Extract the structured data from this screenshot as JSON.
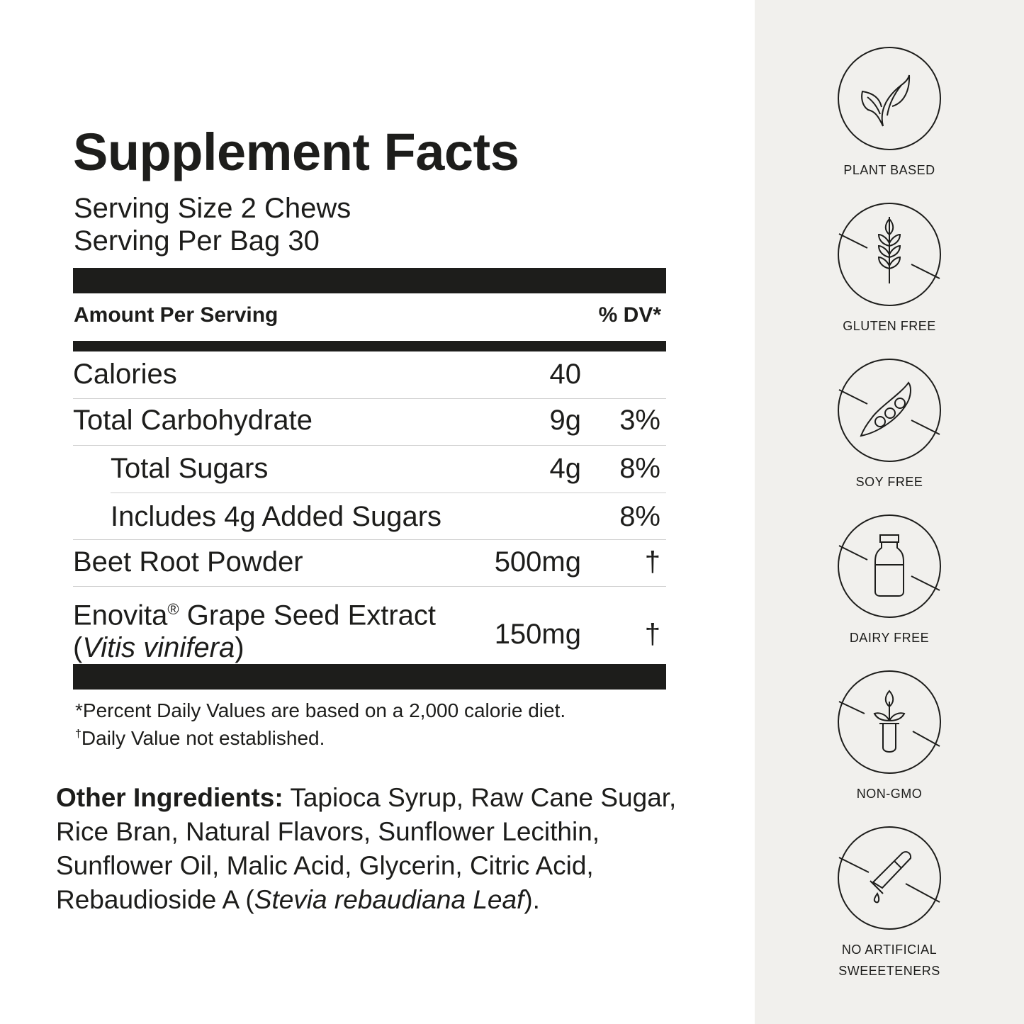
{
  "title": "Supplement Facts",
  "serving_size": "Serving Size 2 Chews",
  "servings_per": "Serving Per Bag 30",
  "header": {
    "amount": "Amount Per Serving",
    "dv": "% DV*"
  },
  "rows": [
    {
      "label": "Calories",
      "amount": "40",
      "dv": ""
    },
    {
      "label": "Total Carbohydrate",
      "amount": "9g",
      "dv": "3%"
    },
    {
      "label": "Total Sugars",
      "amount": "4g",
      "dv": "8%"
    },
    {
      "label": "Includes 4g Added Sugars",
      "amount": "",
      "dv": "8%"
    },
    {
      "label": "Beet Root Powder",
      "amount": "500mg",
      "dv": "†"
    },
    {
      "label": "Enovita",
      "reg": "®",
      "label2": " Grape Seed Extract",
      "sci": "Vitis vinifera",
      "amount": "150mg",
      "dv": "†"
    }
  ],
  "footnotes": {
    "dv": "*Percent Daily Values are based on a 2,000 calorie diet.",
    "dagger_mark": "†",
    "dagger": "Daily Value not established."
  },
  "other": {
    "heading": "Other Ingredients:",
    "text": " Tapioca Syrup, Raw Cane Sugar, Rice Bran, Natural Flavors, Sunflower Lecithin, Sunflower Oil, Malic Acid, Glycerin, Citric Acid, Rebaudioside A (",
    "italic": "Stevia rebaudiana Leaf",
    "end": ")."
  },
  "badges": [
    {
      "icon": "leaf-icon",
      "label": "PLANT BASED"
    },
    {
      "icon": "wheat-icon",
      "label": "GLUTEN FREE"
    },
    {
      "icon": "pea-pod-icon",
      "label": "SOY FREE"
    },
    {
      "icon": "milk-bottle-icon",
      "label": "DAIRY FREE"
    },
    {
      "icon": "test-tube-plant-icon",
      "label": "NON-GMO"
    },
    {
      "icon": "dropper-icon",
      "label": "NO ARTIFICIAL\nSWEEETENERS"
    }
  ],
  "colors": {
    "text": "#1d1d1b",
    "panel": "#f1f0ed"
  }
}
